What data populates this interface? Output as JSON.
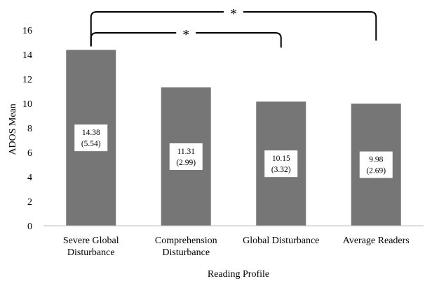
{
  "chart_data": {
    "type": "bar",
    "title": "",
    "xlabel": "Reading Profile",
    "ylabel": "ADOS Mean",
    "ylim": [
      0,
      16
    ],
    "yticks": [
      0,
      2,
      4,
      6,
      8,
      10,
      12,
      14,
      16
    ],
    "grid": false,
    "legend": "none",
    "categories": [
      [
        "Severe Global",
        "Disturbance"
      ],
      [
        "Comprehension",
        "Disturbance"
      ],
      [
        "Global Disturbance"
      ],
      [
        "Average Readers"
      ]
    ],
    "values": [
      14.38,
      11.31,
      10.15,
      9.98
    ],
    "data_labels": [
      [
        "14.38",
        "(5.54)"
      ],
      [
        "11.31",
        "(2.99)"
      ],
      [
        "10.15",
        "(3.32)"
      ],
      [
        "9.98",
        "(2.69)"
      ]
    ],
    "significance": [
      {
        "from": 0,
        "to": 3,
        "label": "*"
      },
      {
        "from": 0,
        "to": 2,
        "label": "*"
      }
    ],
    "colors": {
      "bar": "#767676",
      "axis": "#bfbfbf",
      "bracket": "#000000",
      "label_box": "#ffffff"
    }
  }
}
